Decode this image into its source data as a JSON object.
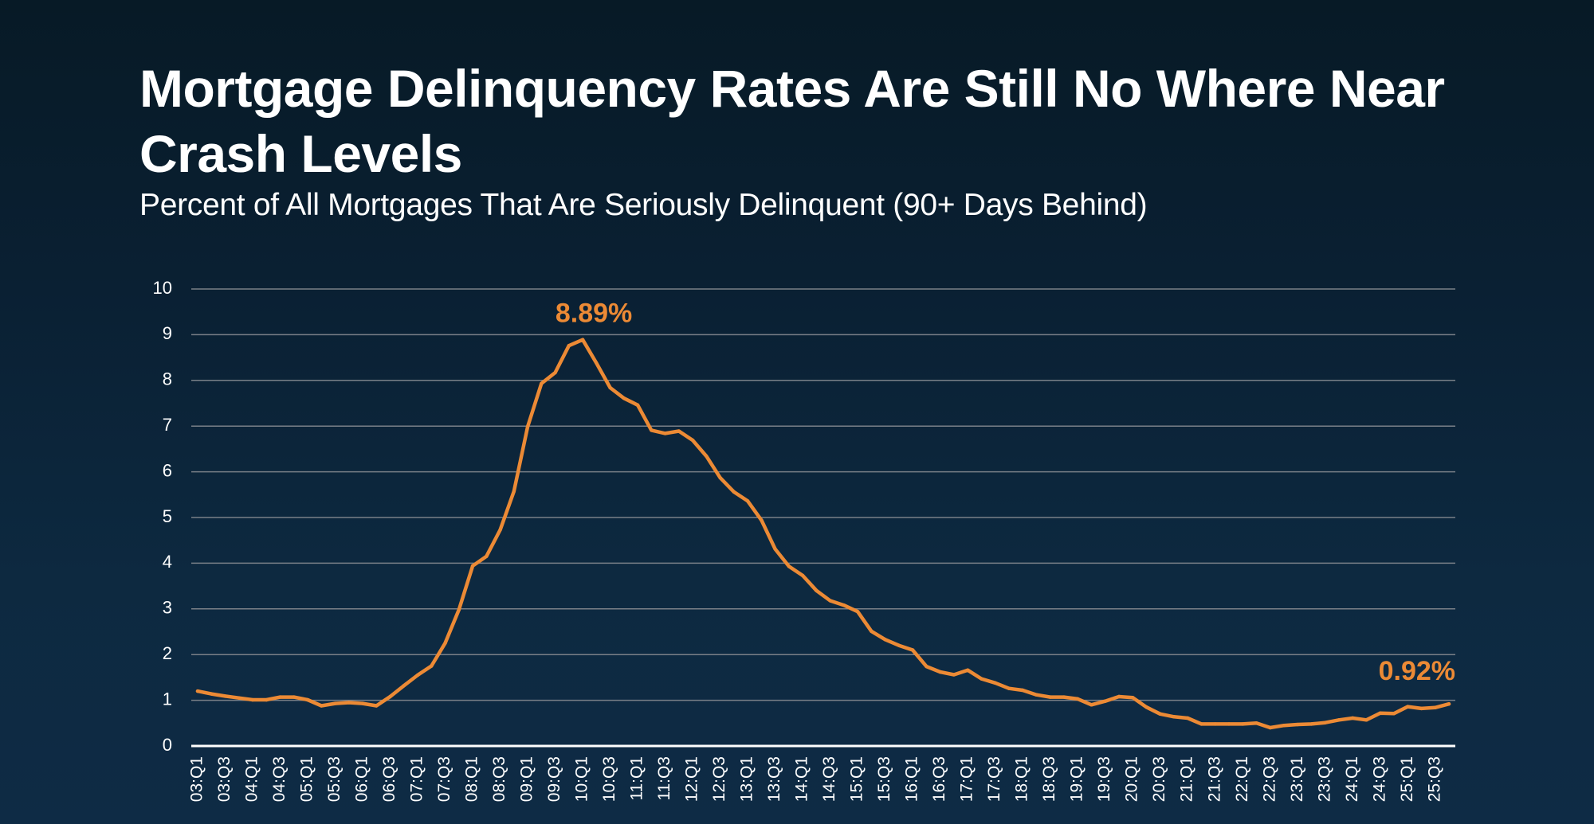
{
  "header": {
    "title": "Mortgage Delinquency Rates Are Still No Where Near Crash Levels",
    "subtitle": "Percent of All Mortgages That Are Seriously Delinquent (90+ Days Behind)"
  },
  "colors": {
    "line": "#ec8a35",
    "annotation": "#ec8a35",
    "grid": "#7a8088",
    "axis": "#ffffff",
    "text": "#ffffff"
  },
  "chart_data": {
    "type": "line",
    "title": "Mortgage Delinquency Rates Are Still No Where Near Crash Levels",
    "subtitle": "Percent of All Mortgages That Are Seriously Delinquent (90+ Days Behind)",
    "xlabel": "",
    "ylabel": "",
    "ylim": [
      0,
      10
    ],
    "yticks": [
      "0",
      "1",
      "2",
      "3",
      "4",
      "5",
      "6",
      "7",
      "8",
      "9",
      "10"
    ],
    "grid": true,
    "legend": "none",
    "x": [
      "03:Q1",
      "03:Q2",
      "03:Q3",
      "03:Q4",
      "04:Q1",
      "04:Q2",
      "04:Q3",
      "04:Q4",
      "05:Q1",
      "05:Q2",
      "05:Q3",
      "05:Q4",
      "06:Q1",
      "06:Q2",
      "06:Q3",
      "06:Q4",
      "07:Q1",
      "07:Q2",
      "07:Q3",
      "07:Q4",
      "08:Q1",
      "08:Q2",
      "08:Q3",
      "08:Q4",
      "09:Q1",
      "09:Q2",
      "09:Q3",
      "09:Q4",
      "10:Q1",
      "10:Q2",
      "10:Q3",
      "10:Q4",
      "11:Q1",
      "11:Q2",
      "11:Q3",
      "11:Q4",
      "12:Q1",
      "12:Q2",
      "12:Q3",
      "12:Q4",
      "13:Q1",
      "13:Q2",
      "13:Q3",
      "13:Q4",
      "14:Q1",
      "14:Q2",
      "14:Q3",
      "14:Q4",
      "15:Q1",
      "15:Q2",
      "15:Q3",
      "15:Q4",
      "16:Q1",
      "16:Q2",
      "16:Q3",
      "16:Q4",
      "17:Q1",
      "17:Q2",
      "17:Q3",
      "17:Q4",
      "18:Q1",
      "18:Q2",
      "18:Q3",
      "18:Q4",
      "19:Q1",
      "19:Q2",
      "19:Q3",
      "19:Q4",
      "20:Q1",
      "20:Q2",
      "20:Q3",
      "20:Q4",
      "21:Q1",
      "21:Q2",
      "21:Q3",
      "21:Q4",
      "22:Q1",
      "22:Q2",
      "22:Q3",
      "22:Q4",
      "23:Q1",
      "23:Q2",
      "23:Q3",
      "23:Q4",
      "24:Q1",
      "24:Q2",
      "24:Q3",
      "24:Q4",
      "25:Q1",
      "25:Q2",
      "25:Q3",
      "25:Q4"
    ],
    "xtick_labels": [
      "03:Q1",
      "03:Q3",
      "04:Q1",
      "04:Q3",
      "05:Q1",
      "05:Q3",
      "06:Q1",
      "06:Q3",
      "07:Q1",
      "07:Q3",
      "08:Q1",
      "08:Q3",
      "09:Q1",
      "09:Q3",
      "10:Q1",
      "10:Q3",
      "11:Q1",
      "11:Q3",
      "12:Q1",
      "12:Q3",
      "13:Q1",
      "13:Q3",
      "14:Q1",
      "14:Q3",
      "15:Q1",
      "15:Q3",
      "16:Q1",
      "16:Q3",
      "17:Q1",
      "17:Q3",
      "18:Q1",
      "18:Q3",
      "19:Q1",
      "19:Q3",
      "20:Q1",
      "20:Q3",
      "21:Q1",
      "21:Q3",
      "22:Q1",
      "22:Q3",
      "23:Q1",
      "23:Q3",
      "24:Q1",
      "24:Q3",
      "25:Q1",
      "25:Q3"
    ],
    "series": [
      {
        "name": "Seriously Delinquent (90+ Days)",
        "values": [
          1.2,
          1.14,
          1.09,
          1.05,
          1.01,
          1.01,
          1.07,
          1.07,
          1.01,
          0.88,
          0.93,
          0.95,
          0.93,
          0.88,
          1.08,
          1.32,
          1.55,
          1.75,
          2.25,
          2.98,
          3.94,
          4.15,
          4.73,
          5.57,
          6.99,
          7.93,
          8.17,
          8.76,
          8.89,
          8.38,
          7.84,
          7.61,
          7.46,
          6.91,
          6.84,
          6.89,
          6.69,
          6.34,
          5.87,
          5.56,
          5.36,
          4.94,
          4.31,
          3.93,
          3.73,
          3.4,
          3.18,
          3.08,
          2.94,
          2.51,
          2.33,
          2.2,
          2.1,
          1.74,
          1.62,
          1.56,
          1.66,
          1.47,
          1.38,
          1.26,
          1.22,
          1.12,
          1.07,
          1.07,
          1.03,
          0.9,
          0.98,
          1.08,
          1.06,
          0.85,
          0.7,
          0.64,
          0.61,
          0.48,
          0.48,
          0.48,
          0.48,
          0.5,
          0.4,
          0.45,
          0.47,
          0.48,
          0.51,
          0.57,
          0.61,
          0.57,
          0.72,
          0.71,
          0.86,
          0.82,
          0.84,
          0.92
        ]
      }
    ],
    "annotations": [
      {
        "text": "8.89%",
        "x": "10:Q1",
        "y": 8.89
      },
      {
        "text": "0.92%",
        "x": "25:Q4",
        "y": 0.92
      }
    ]
  }
}
